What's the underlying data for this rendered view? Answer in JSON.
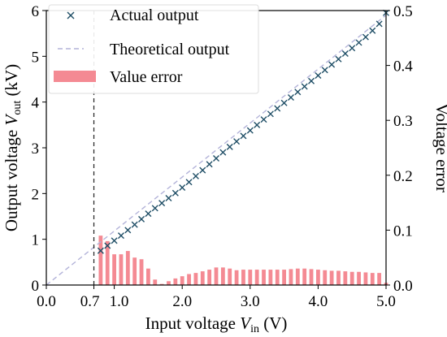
{
  "chart_data": {
    "type": "scatter",
    "xlabel": {
      "main": "Input voltage ",
      "var": "V",
      "sub": "in",
      "unit": " (V)"
    },
    "ylabel_left": {
      "main": "Output voltage ",
      "var": "V",
      "sub": "out",
      "unit": " (kV)"
    },
    "ylabel_right": "Voltage error",
    "xlim": [
      0.0,
      5.0
    ],
    "ylim_left": [
      0,
      6
    ],
    "ylim_right": [
      0.0,
      0.5
    ],
    "x_ticks": [
      {
        "value": 0.0,
        "label": "0.0"
      },
      {
        "value": 0.7,
        "label": "0.7"
      },
      {
        "value": 1.0,
        "label": "1.0"
      },
      {
        "value": 2.0,
        "label": "2.0"
      },
      {
        "value": 3.0,
        "label": "3.0"
      },
      {
        "value": 4.0,
        "label": "4.0"
      },
      {
        "value": 5.0,
        "label": "5.0"
      }
    ],
    "y_left_ticks": [
      0,
      1,
      2,
      3,
      4,
      5,
      6
    ],
    "y_right_ticks": [
      "0.0",
      "0.1",
      "0.2",
      "0.3",
      "0.4",
      "0.5"
    ],
    "threshold_x": 0.7,
    "legend": {
      "placement": "top-left",
      "entries": [
        {
          "label": "Actual output",
          "marker": "x",
          "color": "#1f4e66"
        },
        {
          "label": "Theoretical output",
          "marker": "dashed-line",
          "color": "#b3b3d9"
        },
        {
          "label": "Value error",
          "marker": "bar",
          "color": "#f48a93"
        }
      ]
    },
    "series": [
      {
        "name": "Actual output",
        "color": "#1f4e66",
        "x": [
          0.8,
          0.9,
          1.0,
          1.1,
          1.2,
          1.3,
          1.4,
          1.5,
          1.6,
          1.7,
          1.8,
          1.9,
          2.0,
          2.1,
          2.2,
          2.3,
          2.4,
          2.5,
          2.6,
          2.7,
          2.8,
          2.9,
          3.0,
          3.1,
          3.2,
          3.3,
          3.4,
          3.5,
          3.6,
          3.7,
          3.8,
          3.9,
          4.0,
          4.1,
          4.2,
          4.3,
          4.4,
          4.5,
          4.6,
          4.7,
          4.8,
          4.9,
          5.0
        ],
        "y": [
          0.75,
          0.86,
          0.97,
          1.08,
          1.2,
          1.32,
          1.44,
          1.56,
          1.68,
          1.79,
          1.9,
          2.01,
          2.13,
          2.25,
          2.38,
          2.51,
          2.64,
          2.77,
          2.9,
          3.02,
          3.14,
          3.26,
          3.38,
          3.5,
          3.62,
          3.74,
          3.86,
          3.98,
          4.1,
          4.22,
          4.34,
          4.46,
          4.58,
          4.7,
          4.82,
          4.94,
          5.06,
          5.18,
          5.3,
          5.42,
          5.56,
          5.71,
          5.95
        ]
      },
      {
        "name": "Theoretical output",
        "color": "#b3b3d9",
        "x": [
          0.0,
          5.0
        ],
        "y": [
          0.0,
          5.9
        ]
      },
      {
        "name": "Value error",
        "color": "#f48a93",
        "x": [
          0.8,
          0.9,
          1.0,
          1.1,
          1.2,
          1.3,
          1.4,
          1.5,
          1.6,
          1.7,
          1.8,
          1.9,
          2.0,
          2.1,
          2.2,
          2.3,
          2.4,
          2.5,
          2.6,
          2.7,
          2.8,
          2.9,
          3.0,
          3.1,
          3.2,
          3.3,
          3.4,
          3.5,
          3.6,
          3.7,
          3.8,
          3.9,
          4.0,
          4.1,
          4.2,
          4.3,
          4.4,
          4.5,
          4.6,
          4.7,
          4.8,
          4.9,
          5.0
        ],
        "y": [
          0.09,
          0.08,
          0.056,
          0.056,
          0.062,
          0.05,
          0.047,
          0.03,
          0.01,
          0.002,
          0.007,
          0.012,
          0.016,
          0.02,
          0.022,
          0.025,
          0.028,
          0.032,
          0.032,
          0.03,
          0.027,
          0.028,
          0.028,
          0.028,
          0.028,
          0.028,
          0.028,
          0.028,
          0.029,
          0.03,
          0.03,
          0.029,
          0.028,
          0.027,
          0.026,
          0.026,
          0.025,
          0.024,
          0.024,
          0.023,
          0.022,
          0.022,
          0.004
        ]
      }
    ]
  }
}
